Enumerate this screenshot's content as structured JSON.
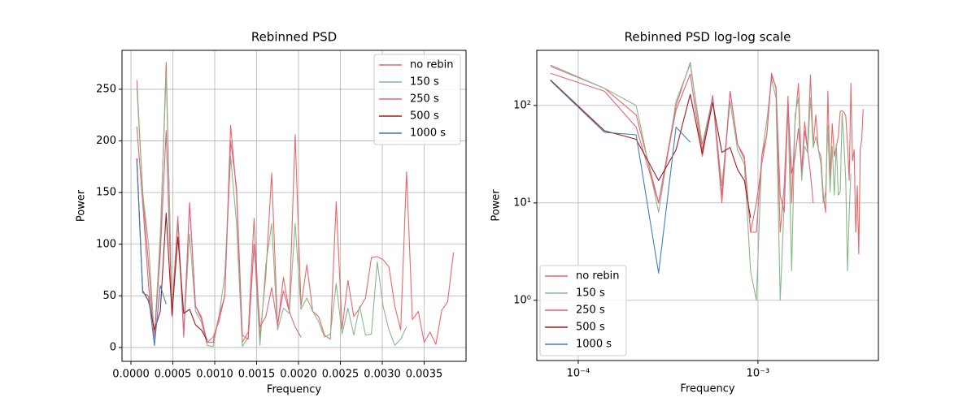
{
  "chart_data": [
    {
      "type": "line",
      "title": "Rebinned PSD",
      "xlabel": "Frequency",
      "ylabel": "Power",
      "xlim": [
        -0.000107,
        0.004
      ],
      "ylim": [
        -13.4,
        287.7
      ],
      "xticks": [
        {
          "value": 0,
          "label": "0.0000"
        },
        0.0005,
        {
          "value": 0.001,
          "label": "0.0010"
        },
        0.0015,
        {
          "value": 0.002,
          "label": "0.0020"
        },
        0.0025,
        {
          "value": 0.003,
          "label": "0.0030"
        },
        0.0035
      ],
      "yticks": [
        0,
        50,
        100,
        150,
        200,
        250
      ],
      "xscale": "linear",
      "yscale": "linear",
      "grid": true,
      "legend": "upper right",
      "series": [
        {
          "name": "no rebin",
          "color": "#e8686a",
          "x": [
            7e-05,
            0.00014,
            0.00021,
            0.00028,
            0.00035,
            0.00042,
            0.00049,
            0.00056,
            0.00063,
            0.0007,
            0.00077,
            0.00084,
            0.00091,
            0.00098,
            0.00105,
            0.00112,
            0.00119,
            0.00126,
            0.00133,
            0.0014,
            0.00147,
            0.00154,
            0.00161,
            0.00168,
            0.00175,
            0.00182,
            0.00189,
            0.00196,
            0.00203,
            0.0021,
            0.00217,
            0.00224,
            0.00231,
            0.00238,
            0.00245,
            0.00252,
            0.00259,
            0.00266,
            0.00273,
            0.0028,
            0.00287,
            0.00294,
            0.00301,
            0.00308,
            0.00315,
            0.00322,
            0.00329,
            0.00336,
            0.00343,
            0.0035,
            0.00357,
            0.00364,
            0.00371,
            0.00378,
            0.00385
          ],
          "values": [
            259,
            150,
            80,
            10,
            100,
            276,
            35,
            125,
            10,
            140,
            40,
            30,
            5,
            10,
            25,
            50,
            215,
            150,
            5,
            15,
            125,
            10,
            70,
            169,
            20,
            68,
            35,
            206,
            40,
            80,
            35,
            30,
            12,
            8,
            141,
            18,
            65,
            30,
            38,
            48,
            87,
            88,
            85,
            78,
            40,
            17,
            170,
            27,
            35,
            5,
            15,
            3,
            36,
            44,
            92
          ]
        },
        {
          "name": "150 s",
          "color": "#8ab78a",
          "x": [
            7e-05,
            0.00014,
            0.00021,
            0.00028,
            0.00035,
            0.00042,
            0.00049,
            0.00056,
            0.00063,
            0.0007,
            0.00077,
            0.00084,
            0.00091,
            0.00098,
            0.00105,
            0.00112,
            0.00119,
            0.00126,
            0.00133,
            0.0014,
            0.00147,
            0.00154,
            0.00161,
            0.00168,
            0.00175,
            0.00182,
            0.00189,
            0.00196,
            0.00203,
            0.0021,
            0.00217,
            0.00224,
            0.00231,
            0.00238,
            0.00245,
            0.00252,
            0.00259,
            0.00266,
            0.00273,
            0.0028,
            0.00287,
            0.00294,
            0.00301,
            0.00308,
            0.00315,
            0.00322,
            0.00329
          ],
          "values": [
            252,
            150,
            100,
            8,
            110,
            265,
            40,
            120,
            15,
            110,
            35,
            25,
            2,
            1,
            30,
            70,
            185,
            120,
            1,
            10,
            100,
            2,
            80,
            120,
            17,
            38,
            33,
            120,
            37,
            48,
            35,
            25,
            10,
            13,
            62,
            13,
            38,
            12,
            40,
            12,
            13,
            83,
            40,
            17,
            2,
            8,
            20
          ]
        },
        {
          "name": "250 s",
          "color": "#de6580",
          "x": [
            7e-05,
            0.00014,
            0.00021,
            0.00028,
            0.00035,
            0.00042,
            0.00049,
            0.00056,
            0.00063,
            0.0007,
            0.00077,
            0.00084,
            0.00091,
            0.00098,
            0.00105,
            0.00112,
            0.00119,
            0.00126,
            0.00133,
            0.0014,
            0.00147,
            0.00154,
            0.00161,
            0.00168,
            0.00175,
            0.00182,
            0.00189,
            0.00196,
            0.00203
          ],
          "values": [
            214,
            140,
            60,
            10,
            90,
            210,
            30,
            127,
            12,
            140,
            40,
            28,
            5,
            5,
            30,
            50,
            200,
            155,
            12,
            8,
            100,
            20,
            30,
            58,
            22,
            55,
            35,
            20,
            10
          ]
        },
        {
          "name": "500 s",
          "color": "#a01c1c",
          "x": [
            7e-05,
            0.00014,
            0.00021,
            0.00028,
            0.00035,
            0.00042,
            0.00049,
            0.00056,
            0.00063,
            0.0007,
            0.00077,
            0.00084,
            0.00091
          ],
          "values": [
            183,
            55,
            45,
            17,
            35,
            130,
            32,
            107,
            33,
            37,
            22,
            17,
            7
          ]
        },
        {
          "name": "1000 s",
          "color": "#3f7fb5",
          "x": [
            7e-05,
            0.00014,
            0.00021,
            0.00028,
            0.00035,
            0.00042
          ],
          "values": [
            180,
            53,
            50,
            1.9,
            60,
            42
          ]
        }
      ]
    },
    {
      "type": "line",
      "title": "Rebinned PSD log-log scale",
      "xlabel": "Frequency",
      "ylabel": "Power",
      "xlim": [
        5.88e-05,
        0.00468
      ],
      "ylim": [
        0.241,
        368
      ],
      "xticks": [
        {
          "value": 0.0001,
          "label": "10⁻⁴"
        },
        {
          "value": 0.001,
          "label": "10⁻³"
        }
      ],
      "yticks": [
        {
          "value": 1,
          "label": "10⁰"
        },
        {
          "value": 10,
          "label": "10¹"
        },
        {
          "value": 100,
          "label": "10²"
        }
      ],
      "xscale": "log",
      "yscale": "log",
      "grid": true,
      "legend": "lower left",
      "series": [
        {
          "name": "no rebin",
          "color": "#e8686a",
          "x": [
            7e-05,
            0.00014,
            0.00021,
            0.00028,
            0.00035,
            0.00042,
            0.00049,
            0.00056,
            0.00063,
            0.0007,
            0.00077,
            0.00084,
            0.00091,
            0.00098,
            0.00105,
            0.00112,
            0.00119,
            0.00126,
            0.00133,
            0.0014,
            0.00147,
            0.00154,
            0.00161,
            0.00168,
            0.00175,
            0.00182,
            0.00189,
            0.00196,
            0.00203,
            0.0021,
            0.00217,
            0.00224,
            0.00231,
            0.00238,
            0.00245,
            0.00252,
            0.00259,
            0.00266,
            0.00273,
            0.0028,
            0.00287,
            0.00294,
            0.00301,
            0.00308,
            0.00315,
            0.00322,
            0.00329,
            0.00336,
            0.00343,
            0.0035,
            0.00357,
            0.00364,
            0.00371,
            0.00378,
            0.00385
          ],
          "values": [
            259,
            150,
            80,
            10,
            100,
            276,
            35,
            125,
            10,
            140,
            40,
            30,
            5,
            10,
            25,
            50,
            215,
            150,
            5,
            15,
            125,
            10,
            70,
            169,
            20,
            68,
            35,
            206,
            40,
            80,
            35,
            30,
            12,
            8,
            141,
            18,
            65,
            30,
            38,
            48,
            87,
            88,
            85,
            78,
            40,
            17,
            170,
            27,
            35,
            5,
            15,
            3,
            36,
            44,
            92
          ]
        },
        {
          "name": "150 s",
          "color": "#8ab78a",
          "x": [
            7e-05,
            0.00014,
            0.00021,
            0.00028,
            0.00035,
            0.00042,
            0.00049,
            0.00056,
            0.00063,
            0.0007,
            0.00077,
            0.00084,
            0.00091,
            0.00098,
            0.00105,
            0.00112,
            0.00119,
            0.00126,
            0.00133,
            0.0014,
            0.00147,
            0.00154,
            0.00161,
            0.00168,
            0.00175,
            0.00182,
            0.00189,
            0.00196,
            0.00203,
            0.0021,
            0.00217,
            0.00224,
            0.00231,
            0.00238,
            0.00245,
            0.00252,
            0.00259,
            0.00266,
            0.00273,
            0.0028,
            0.00287,
            0.00294,
            0.00301,
            0.00308,
            0.00315,
            0.00322,
            0.00329
          ],
          "values": [
            252,
            150,
            100,
            8,
            110,
            265,
            40,
            120,
            15,
            110,
            35,
            25,
            2,
            1,
            30,
            70,
            185,
            120,
            1,
            10,
            100,
            2,
            80,
            120,
            17,
            38,
            33,
            120,
            37,
            48,
            35,
            25,
            10,
            13,
            62,
            13,
            38,
            12,
            40,
            12,
            13,
            83,
            40,
            17,
            2,
            8,
            20
          ]
        },
        {
          "name": "250 s",
          "color": "#de6580",
          "x": [
            7e-05,
            0.00014,
            0.00021,
            0.00028,
            0.00035,
            0.00042,
            0.00049,
            0.00056,
            0.00063,
            0.0007,
            0.00077,
            0.00084,
            0.00091,
            0.00098,
            0.00105,
            0.00112,
            0.00119,
            0.00126,
            0.00133,
            0.0014,
            0.00147,
            0.00154,
            0.00161,
            0.00168,
            0.00175,
            0.00182,
            0.00189,
            0.00196,
            0.00203
          ],
          "values": [
            214,
            140,
            60,
            10,
            90,
            210,
            30,
            127,
            12,
            140,
            40,
            28,
            5,
            5,
            30,
            50,
            200,
            155,
            12,
            8,
            100,
            20,
            30,
            58,
            22,
            55,
            35,
            20,
            10
          ]
        },
        {
          "name": "500 s",
          "color": "#a01c1c",
          "x": [
            7e-05,
            0.00014,
            0.00021,
            0.00028,
            0.00035,
            0.00042,
            0.00049,
            0.00056,
            0.00063,
            0.0007,
            0.00077,
            0.00084,
            0.00091
          ],
          "values": [
            183,
            55,
            45,
            17,
            35,
            130,
            32,
            107,
            33,
            37,
            22,
            17,
            7
          ]
        },
        {
          "name": "1000 s",
          "color": "#3f7fb5",
          "x": [
            7e-05,
            0.00014,
            0.00021,
            0.00028,
            0.00035,
            0.00042
          ],
          "values": [
            180,
            53,
            50,
            1.9,
            60,
            42
          ]
        }
      ]
    }
  ]
}
